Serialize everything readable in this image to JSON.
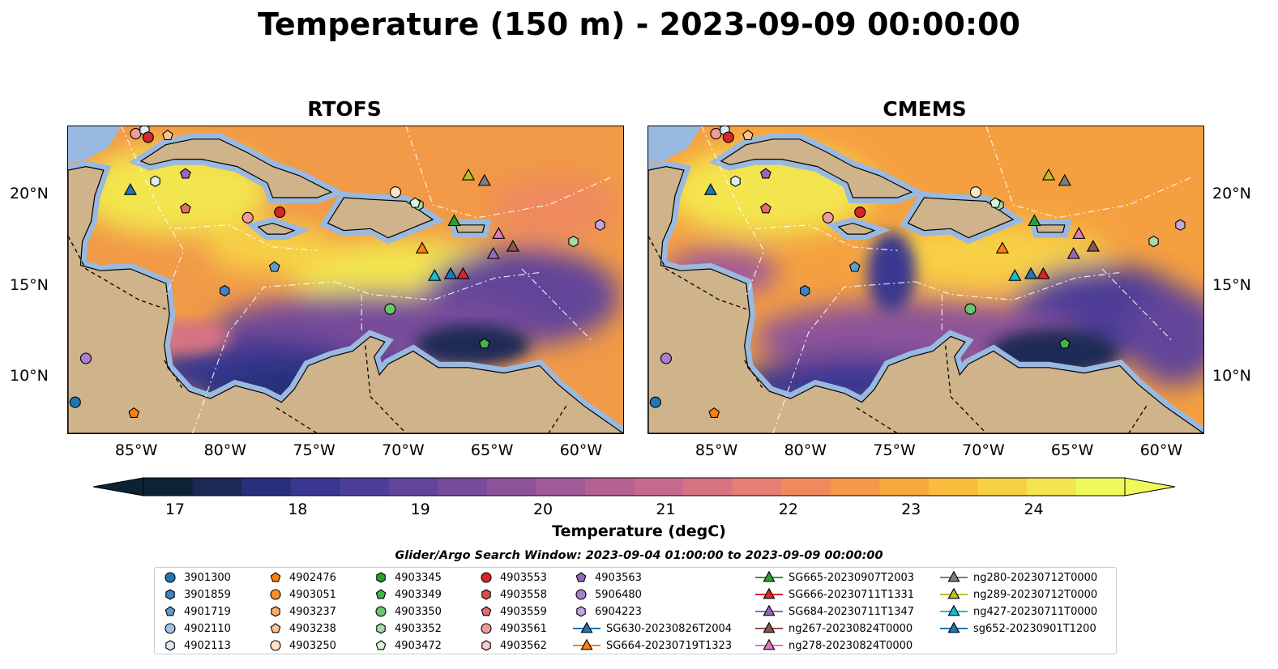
{
  "title": "Temperature (150 m) - 2023-09-09 00:00:00",
  "panels": [
    {
      "name": "RTOFS"
    },
    {
      "name": "CMEMS"
    }
  ],
  "lon_ticks": [
    "85°W",
    "80°W",
    "75°W",
    "70°W",
    "65°W",
    "60°W"
  ],
  "lat_ticks": [
    "20°N",
    "15°N",
    "10°N"
  ],
  "colors": {
    "land": "#cfb38a",
    "shelf": "#9ab9e0",
    "deep_low": "#07202e"
  },
  "colorbar": {
    "label": "Temperature (degC)",
    "ticks": [
      "17",
      "18",
      "19",
      "20",
      "21",
      "22",
      "23",
      "24"
    ],
    "range": [
      16.75,
      24.75
    ],
    "colors": [
      "#0b2334",
      "#1a2a55",
      "#28307c",
      "#3a3791",
      "#4d3e97",
      "#624599",
      "#774c9a",
      "#8c539a",
      "#a05a98",
      "#b46194",
      "#c66a8d",
      "#d67383",
      "#e57e73",
      "#ef8a5e",
      "#f59848",
      "#f8a93c",
      "#f9bc3c",
      "#f7d044",
      "#f3e54e",
      "#eefa5a"
    ]
  },
  "search_window": "Glider/Argo Search Window: 2023-09-04 01:00:00 to 2023-09-09 00:00:00",
  "legend": [
    {
      "label": "3901300",
      "marker": "circle",
      "color": "#1f77b4",
      "line": false
    },
    {
      "label": "3901859",
      "marker": "hexagon",
      "color": "#3f84c0",
      "line": false
    },
    {
      "label": "4901719",
      "marker": "pentagon",
      "color": "#5f9ccc",
      "line": false
    },
    {
      "label": "4902110",
      "marker": "circle",
      "color": "#9ec3e6",
      "line": false
    },
    {
      "label": "4902113",
      "marker": "hexagon",
      "color": "#dcebf8",
      "line": false
    },
    {
      "label": "4902476",
      "marker": "pentagon",
      "color": "#ff7f0e",
      "line": false
    },
    {
      "label": "4903051",
      "marker": "circle",
      "color": "#ff8f2e",
      "line": false
    },
    {
      "label": "4903237",
      "marker": "hexagon",
      "color": "#ffad66",
      "line": false
    },
    {
      "label": "4903238",
      "marker": "pentagon",
      "color": "#ffc28f",
      "line": false
    },
    {
      "label": "4903250",
      "marker": "circle",
      "color": "#ffe2c8",
      "line": false
    },
    {
      "label": "4903345",
      "marker": "hexagon",
      "color": "#2ca02c",
      "line": false
    },
    {
      "label": "4903349",
      "marker": "pentagon",
      "color": "#47b247",
      "line": false
    },
    {
      "label": "4903350",
      "marker": "circle",
      "color": "#6cc46c",
      "line": false
    },
    {
      "label": "4903352",
      "marker": "hexagon",
      "color": "#a3dda3",
      "line": false
    },
    {
      "label": "4903472",
      "marker": "pentagon",
      "color": "#d6f5d6",
      "line": false
    },
    {
      "label": "4903553",
      "marker": "circle",
      "color": "#d62728",
      "line": false
    },
    {
      "label": "4903558",
      "marker": "hexagon",
      "color": "#df4a4b",
      "line": false
    },
    {
      "label": "4903559",
      "marker": "pentagon",
      "color": "#e66c6d",
      "line": false
    },
    {
      "label": "4903561",
      "marker": "circle",
      "color": "#f09a9a",
      "line": false
    },
    {
      "label": "4903562",
      "marker": "hexagon",
      "color": "#f8cccc",
      "line": false
    },
    {
      "label": "4903563",
      "marker": "pentagon",
      "color": "#9467bd",
      "line": false
    },
    {
      "label": "5906480",
      "marker": "circle",
      "color": "#a57fcb",
      "line": false
    },
    {
      "label": "6904223",
      "marker": "hexagon",
      "color": "#c2a7de",
      "line": false
    },
    {
      "label": "SG630-20230826T2004",
      "marker": "triangle",
      "color": "#1f77b4",
      "line": true
    },
    {
      "label": "SG664-20230719T1323",
      "marker": "triangle",
      "color": "#ff7f0e",
      "line": true
    },
    {
      "label": "SG665-20230907T2003",
      "marker": "triangle",
      "color": "#2ca02c",
      "line": true
    },
    {
      "label": "SG666-20230711T1331",
      "marker": "triangle",
      "color": "#d62728",
      "line": true
    },
    {
      "label": "SG684-20230711T1347",
      "marker": "triangle",
      "color": "#9467bd",
      "line": true
    },
    {
      "label": "ng267-20230824T0000",
      "marker": "triangle",
      "color": "#8c564b",
      "line": true
    },
    {
      "label": "ng278-20230824T0000",
      "marker": "triangle",
      "color": "#e377c2",
      "line": true
    },
    {
      "label": "ng280-20230712T0000",
      "marker": "triangle",
      "color": "#7f7f7f",
      "line": true
    },
    {
      "label": "ng289-20230712T0000",
      "marker": "triangle",
      "color": "#bcbd22",
      "line": true
    },
    {
      "label": "ng427-20230711T0000",
      "marker": "triangle",
      "color": "#17becf",
      "line": true
    },
    {
      "label": "sg652-20230901T1200",
      "marker": "triangle",
      "color": "#1f77b4",
      "line": true
    }
  ],
  "markers": [
    {
      "label": "3901300",
      "lon": -88.6,
      "lat": 8.7
    },
    {
      "label": "4902476",
      "lon": -85.3,
      "lat": 8.1
    },
    {
      "label": "4903561",
      "lon": -85.2,
      "lat": 23.4
    },
    {
      "label": "4902113",
      "lon": -84.7,
      "lat": 23.6
    },
    {
      "label": "4903553",
      "lon": -84.5,
      "lat": 23.2
    },
    {
      "label": "4903238",
      "lon": -83.4,
      "lat": 23.3
    },
    {
      "label": "SG630-20230826T2004",
      "lon": -85.5,
      "lat": 20.3
    },
    {
      "label": "4902113",
      "lon": -84.1,
      "lat": 20.8
    },
    {
      "label": "4903563",
      "lon": -82.4,
      "lat": 21.2
    },
    {
      "label": "4903559",
      "lon": -82.4,
      "lat": 19.3
    },
    {
      "label": "4903561",
      "lon": -78.9,
      "lat": 18.8
    },
    {
      "label": "4903553",
      "lon": -77.1,
      "lat": 19.1
    },
    {
      "label": "4901719",
      "lon": -77.4,
      "lat": 16.1
    },
    {
      "label": "3901859",
      "lon": -80.2,
      "lat": 14.8
    },
    {
      "label": "4903250",
      "lon": -70.6,
      "lat": 20.2
    },
    {
      "label": "4903352",
      "lon": -69.3,
      "lat": 19.5
    },
    {
      "label": "4903472",
      "lon": -69.5,
      "lat": 19.6
    },
    {
      "label": "SG664-20230719T1323",
      "lon": -69.1,
      "lat": 17.1
    },
    {
      "label": "SG665-20230907T2003",
      "lon": -67.3,
      "lat": 18.6
    },
    {
      "label": "ng289-20230712T0000",
      "lon": -66.5,
      "lat": 21.1
    },
    {
      "label": "ng280-20230712T0000",
      "lon": -65.6,
      "lat": 20.8
    },
    {
      "label": "ng278-20230824T0000",
      "lon": -64.8,
      "lat": 17.9
    },
    {
      "label": "SG684-20230711T1347",
      "lon": -65.1,
      "lat": 16.8
    },
    {
      "label": "ng267-20230824T0000",
      "lon": -64.0,
      "lat": 17.2
    },
    {
      "label": "4903352",
      "lon": -60.6,
      "lat": 17.5
    },
    {
      "label": "6904223",
      "lon": -59.1,
      "lat": 18.4
    },
    {
      "label": "ng427-20230711T0000",
      "lon": -68.4,
      "lat": 15.6
    },
    {
      "label": "sg652-20230901T1200",
      "lon": -67.5,
      "lat": 15.7
    },
    {
      "label": "SG666-20230711T1331",
      "lon": -66.8,
      "lat": 15.7
    },
    {
      "label": "4903350",
      "lon": -70.9,
      "lat": 13.8
    },
    {
      "label": "4903349",
      "lon": -65.6,
      "lat": 11.9
    },
    {
      "label": "5906480",
      "lon": -88.0,
      "lat": 11.1
    }
  ]
}
